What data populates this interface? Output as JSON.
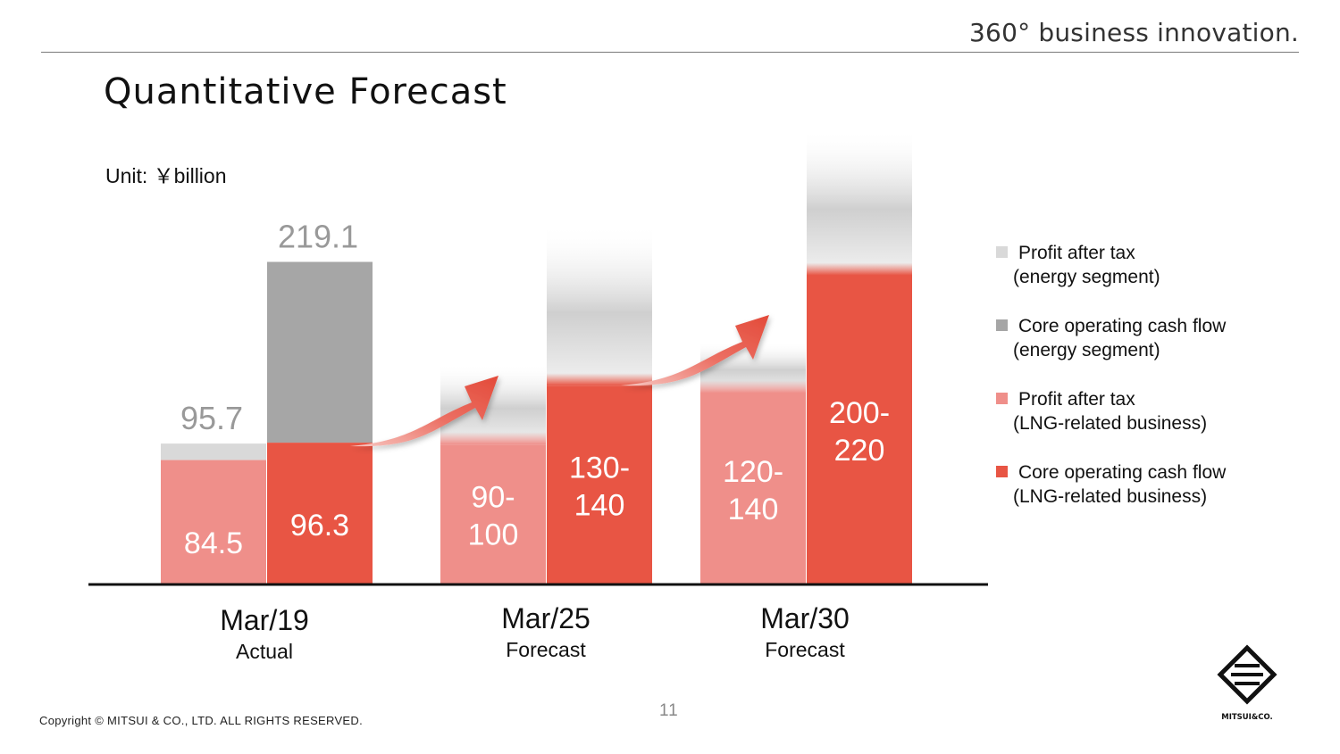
{
  "header": {
    "tagline": "360° business innovation."
  },
  "title": "Quantitative Forecast",
  "unit": "Unit: ￥billion",
  "legend": [
    {
      "line1": "Profit after tax",
      "line2": "(energy segment)",
      "color": "#d9d9d9"
    },
    {
      "line1": "Core operating cash flow",
      "line2": "(energy segment)",
      "color": "#a6a6a6"
    },
    {
      "line1": "Profit after tax",
      "line2": "(LNG-related business)",
      "color": "#ef8f8a"
    },
    {
      "line1": "Core operating cash flow",
      "line2": "(LNG-related business)",
      "color": "#e85544"
    }
  ],
  "chart_data": {
    "type": "bar",
    "ylim": [
      0,
      250
    ],
    "colors": {
      "energy_profit": "#d9d9d9",
      "energy_cf": "#a6a6a6",
      "lng_profit": "#ef8f8a",
      "lng_cf": "#e85544",
      "total_label": "#999999",
      "arrow": "#e85544"
    },
    "groups": [
      {
        "name": "Mar/19",
        "subtitle": "Actual",
        "bars": [
          {
            "series": "profit",
            "lng": 84.5,
            "lng_label": "84.5",
            "energy_total": 95.7,
            "total_label": "95.7",
            "fade": false
          },
          {
            "series": "cash_flow",
            "lng": 96.3,
            "lng_label": "96.3",
            "energy_total": 219.1,
            "total_label": "219.1",
            "fade": false
          }
        ]
      },
      {
        "name": "Mar/25",
        "subtitle": "Forecast",
        "bars": [
          {
            "series": "profit",
            "lng": 95,
            "lng_label": [
              "90-",
              "100"
            ],
            "energy_total": 150,
            "fade": true
          },
          {
            "series": "cash_flow",
            "lng": 135,
            "lng_label": [
              "130-",
              "140"
            ],
            "energy_total": 245,
            "fade": true
          }
        ]
      },
      {
        "name": "Mar/30",
        "subtitle": "Forecast",
        "bars": [
          {
            "series": "profit",
            "lng": 130,
            "lng_label": [
              "120-",
              "140"
            ],
            "energy_total": 165,
            "fade": true
          },
          {
            "series": "cash_flow",
            "lng": 210,
            "lng_label": [
              "200-",
              "220"
            ],
            "energy_total": 310,
            "fade": true
          }
        ]
      }
    ]
  },
  "footer": {
    "copyright": "Copyright © MITSUI & CO., LTD. ALL RIGHTS RESERVED.",
    "page_number": "11",
    "logo_text": "MITSUI&CO."
  }
}
